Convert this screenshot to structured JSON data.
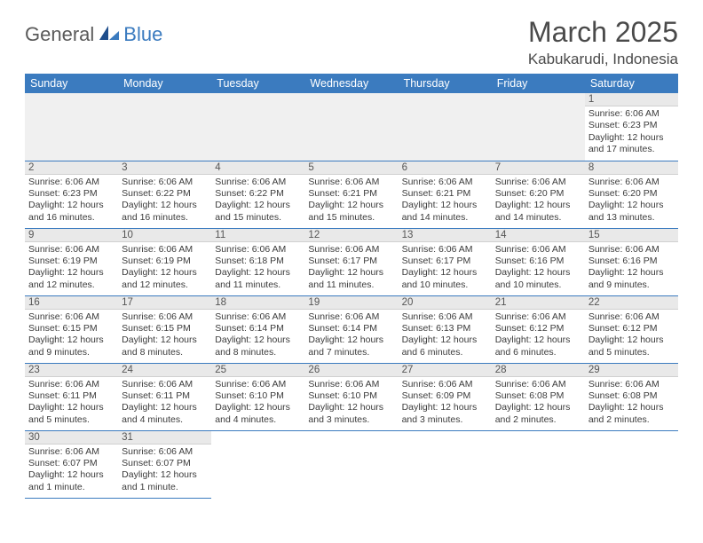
{
  "logo": {
    "word1": "General",
    "word2": "Blue"
  },
  "title": "March 2025",
  "location": "Kabukarudi, Indonesia",
  "colors": {
    "header_bg": "#3b7bbf",
    "header_text": "#ffffff",
    "daynum_bg": "#e9e9e9",
    "row_border": "#3b7bbf",
    "empty_bg": "#f0f0f0",
    "logo_gray": "#5a5a5a",
    "logo_blue": "#3b7bbf"
  },
  "weekdays": [
    "Sunday",
    "Monday",
    "Tuesday",
    "Wednesday",
    "Thursday",
    "Friday",
    "Saturday"
  ],
  "weeks": [
    [
      null,
      null,
      null,
      null,
      null,
      null,
      {
        "n": "1",
        "sr": "Sunrise: 6:06 AM",
        "ss": "Sunset: 6:23 PM",
        "dl": "Daylight: 12 hours and 17 minutes."
      }
    ],
    [
      {
        "n": "2",
        "sr": "Sunrise: 6:06 AM",
        "ss": "Sunset: 6:23 PM",
        "dl": "Daylight: 12 hours and 16 minutes."
      },
      {
        "n": "3",
        "sr": "Sunrise: 6:06 AM",
        "ss": "Sunset: 6:22 PM",
        "dl": "Daylight: 12 hours and 16 minutes."
      },
      {
        "n": "4",
        "sr": "Sunrise: 6:06 AM",
        "ss": "Sunset: 6:22 PM",
        "dl": "Daylight: 12 hours and 15 minutes."
      },
      {
        "n": "5",
        "sr": "Sunrise: 6:06 AM",
        "ss": "Sunset: 6:21 PM",
        "dl": "Daylight: 12 hours and 15 minutes."
      },
      {
        "n": "6",
        "sr": "Sunrise: 6:06 AM",
        "ss": "Sunset: 6:21 PM",
        "dl": "Daylight: 12 hours and 14 minutes."
      },
      {
        "n": "7",
        "sr": "Sunrise: 6:06 AM",
        "ss": "Sunset: 6:20 PM",
        "dl": "Daylight: 12 hours and 14 minutes."
      },
      {
        "n": "8",
        "sr": "Sunrise: 6:06 AM",
        "ss": "Sunset: 6:20 PM",
        "dl": "Daylight: 12 hours and 13 minutes."
      }
    ],
    [
      {
        "n": "9",
        "sr": "Sunrise: 6:06 AM",
        "ss": "Sunset: 6:19 PM",
        "dl": "Daylight: 12 hours and 12 minutes."
      },
      {
        "n": "10",
        "sr": "Sunrise: 6:06 AM",
        "ss": "Sunset: 6:19 PM",
        "dl": "Daylight: 12 hours and 12 minutes."
      },
      {
        "n": "11",
        "sr": "Sunrise: 6:06 AM",
        "ss": "Sunset: 6:18 PM",
        "dl": "Daylight: 12 hours and 11 minutes."
      },
      {
        "n": "12",
        "sr": "Sunrise: 6:06 AM",
        "ss": "Sunset: 6:17 PM",
        "dl": "Daylight: 12 hours and 11 minutes."
      },
      {
        "n": "13",
        "sr": "Sunrise: 6:06 AM",
        "ss": "Sunset: 6:17 PM",
        "dl": "Daylight: 12 hours and 10 minutes."
      },
      {
        "n": "14",
        "sr": "Sunrise: 6:06 AM",
        "ss": "Sunset: 6:16 PM",
        "dl": "Daylight: 12 hours and 10 minutes."
      },
      {
        "n": "15",
        "sr": "Sunrise: 6:06 AM",
        "ss": "Sunset: 6:16 PM",
        "dl": "Daylight: 12 hours and 9 minutes."
      }
    ],
    [
      {
        "n": "16",
        "sr": "Sunrise: 6:06 AM",
        "ss": "Sunset: 6:15 PM",
        "dl": "Daylight: 12 hours and 9 minutes."
      },
      {
        "n": "17",
        "sr": "Sunrise: 6:06 AM",
        "ss": "Sunset: 6:15 PM",
        "dl": "Daylight: 12 hours and 8 minutes."
      },
      {
        "n": "18",
        "sr": "Sunrise: 6:06 AM",
        "ss": "Sunset: 6:14 PM",
        "dl": "Daylight: 12 hours and 8 minutes."
      },
      {
        "n": "19",
        "sr": "Sunrise: 6:06 AM",
        "ss": "Sunset: 6:14 PM",
        "dl": "Daylight: 12 hours and 7 minutes."
      },
      {
        "n": "20",
        "sr": "Sunrise: 6:06 AM",
        "ss": "Sunset: 6:13 PM",
        "dl": "Daylight: 12 hours and 6 minutes."
      },
      {
        "n": "21",
        "sr": "Sunrise: 6:06 AM",
        "ss": "Sunset: 6:12 PM",
        "dl": "Daylight: 12 hours and 6 minutes."
      },
      {
        "n": "22",
        "sr": "Sunrise: 6:06 AM",
        "ss": "Sunset: 6:12 PM",
        "dl": "Daylight: 12 hours and 5 minutes."
      }
    ],
    [
      {
        "n": "23",
        "sr": "Sunrise: 6:06 AM",
        "ss": "Sunset: 6:11 PM",
        "dl": "Daylight: 12 hours and 5 minutes."
      },
      {
        "n": "24",
        "sr": "Sunrise: 6:06 AM",
        "ss": "Sunset: 6:11 PM",
        "dl": "Daylight: 12 hours and 4 minutes."
      },
      {
        "n": "25",
        "sr": "Sunrise: 6:06 AM",
        "ss": "Sunset: 6:10 PM",
        "dl": "Daylight: 12 hours and 4 minutes."
      },
      {
        "n": "26",
        "sr": "Sunrise: 6:06 AM",
        "ss": "Sunset: 6:10 PM",
        "dl": "Daylight: 12 hours and 3 minutes."
      },
      {
        "n": "27",
        "sr": "Sunrise: 6:06 AM",
        "ss": "Sunset: 6:09 PM",
        "dl": "Daylight: 12 hours and 3 minutes."
      },
      {
        "n": "28",
        "sr": "Sunrise: 6:06 AM",
        "ss": "Sunset: 6:08 PM",
        "dl": "Daylight: 12 hours and 2 minutes."
      },
      {
        "n": "29",
        "sr": "Sunrise: 6:06 AM",
        "ss": "Sunset: 6:08 PM",
        "dl": "Daylight: 12 hours and 2 minutes."
      }
    ],
    [
      {
        "n": "30",
        "sr": "Sunrise: 6:06 AM",
        "ss": "Sunset: 6:07 PM",
        "dl": "Daylight: 12 hours and 1 minute."
      },
      {
        "n": "31",
        "sr": "Sunrise: 6:06 AM",
        "ss": "Sunset: 6:07 PM",
        "dl": "Daylight: 12 hours and 1 minute."
      },
      null,
      null,
      null,
      null,
      null
    ]
  ]
}
